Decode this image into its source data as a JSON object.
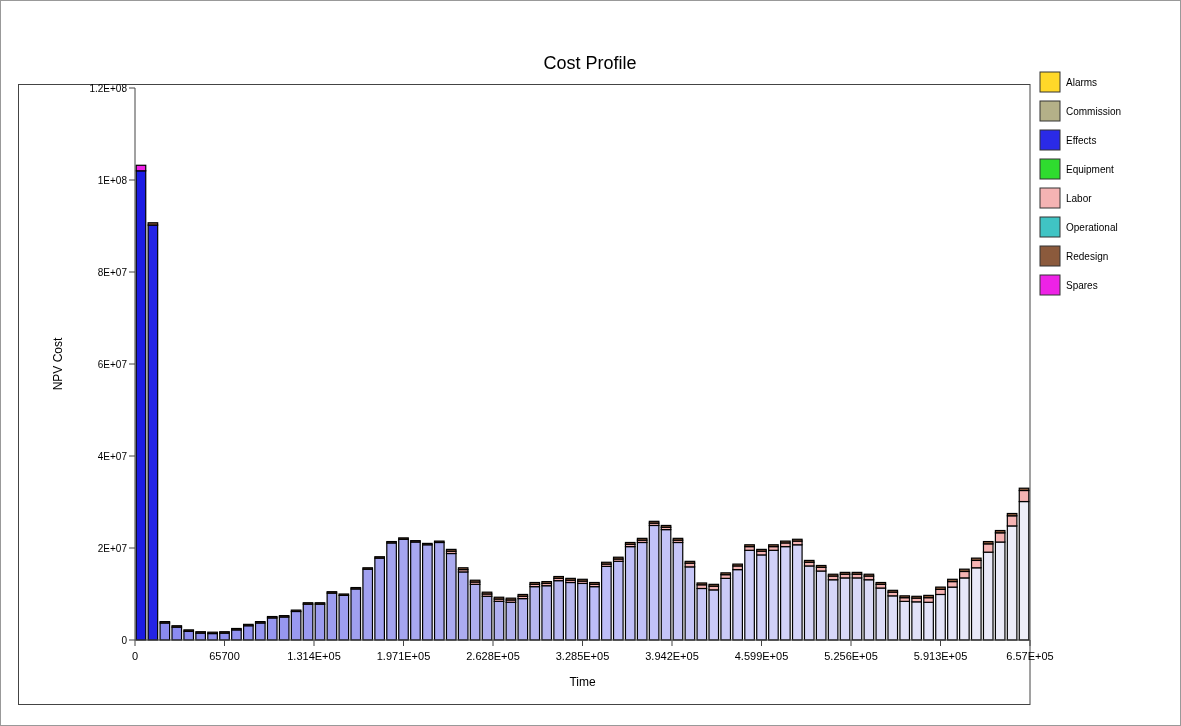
{
  "chart_data": {
    "type": "bar",
    "stacked": true,
    "title": "Cost Profile",
    "xlabel": "Time",
    "ylabel": "NPV Cost",
    "legend": "right",
    "grid": false,
    "xlim": [
      0,
      657000
    ],
    "ylim": [
      0,
      120000000
    ],
    "xticks": [
      0,
      65700,
      {
        "value": 131400,
        "label": "1.314E+05"
      },
      {
        "value": 197100,
        "label": "1.971E+05"
      },
      {
        "value": 262800,
        "label": "2.628E+05"
      },
      {
        "value": 328500,
        "label": "3.285E+05"
      },
      {
        "value": 394200,
        "label": "3.942E+05"
      },
      {
        "value": 459900,
        "label": "4.599E+05"
      },
      {
        "value": 525600,
        "label": "5.256E+05"
      },
      {
        "value": 591300,
        "label": "5.913E+05"
      },
      {
        "value": 657000,
        "label": "6.57E+05"
      }
    ],
    "yticks": [
      0,
      {
        "value": 20000000,
        "label": "2E+07"
      },
      {
        "value": 40000000,
        "label": "4E+07"
      },
      {
        "value": 60000000,
        "label": "6E+07"
      },
      {
        "value": 80000000,
        "label": "8E+07"
      },
      {
        "value": 100000000,
        "label": "1E+08"
      },
      {
        "value": 120000000,
        "label": "1.2E+08"
      }
    ],
    "x": [
      4380,
      13140,
      21900,
      30660,
      39420,
      48180,
      56940,
      65700,
      74460,
      83220,
      91980,
      100740,
      109500,
      118260,
      127020,
      135780,
      144540,
      153300,
      162060,
      170820,
      179580,
      188340,
      197100,
      205860,
      214620,
      223380,
      232140,
      240900,
      249660,
      258420,
      267180,
      275940,
      284700,
      293460,
      302220,
      310980,
      319740,
      328500,
      337260,
      346020,
      354780,
      363540,
      372300,
      381060,
      389820,
      398580,
      407340,
      416100,
      424860,
      433620,
      442380,
      451140,
      459900,
      468660,
      477420,
      486180,
      494940,
      503700,
      512460,
      521220,
      529980,
      538740,
      547500,
      556260,
      565020,
      573780,
      582540,
      591300,
      600060,
      608820,
      617580,
      626340,
      635100,
      643860,
      652620
    ],
    "series": [
      {
        "name": "Alarms",
        "color": "#ffd829",
        "values": [
          0,
          0,
          0,
          0,
          0,
          0,
          0,
          0,
          0,
          0,
          0,
          0,
          0,
          0,
          0,
          0,
          0,
          0,
          0,
          0,
          0,
          0,
          0,
          0,
          0,
          0,
          0,
          0,
          0,
          0,
          0,
          0,
          0,
          0,
          0,
          0,
          0,
          0,
          0,
          0,
          0,
          0,
          0,
          0,
          0,
          0,
          0,
          0,
          0,
          0,
          0,
          0,
          0,
          0,
          0,
          0,
          0,
          0,
          0,
          0,
          0,
          0,
          0,
          0,
          0,
          0,
          0,
          0,
          0,
          0,
          0,
          0,
          0,
          0,
          0
        ]
      },
      {
        "name": "Commission",
        "color": "#b4b088",
        "values": [
          0,
          0,
          0,
          0,
          0,
          0,
          0,
          0,
          0,
          0,
          0,
          0,
          0,
          0,
          0,
          0,
          0,
          0,
          0,
          0,
          0,
          0,
          0,
          0,
          0,
          0,
          0,
          0,
          0,
          0,
          0,
          0,
          0,
          0,
          0,
          0,
          0,
          0,
          0,
          0,
          0,
          0,
          0,
          0,
          0,
          0,
          0,
          0,
          0,
          0,
          0,
          0,
          0,
          0,
          0,
          0,
          0,
          0,
          0,
          0,
          0,
          0,
          0,
          0,
          0,
          0,
          0,
          0,
          0,
          0,
          0,
          0,
          0,
          0,
          0
        ]
      },
      {
        "name": "Effects",
        "color": "#2a2ae6",
        "values": [
          102000000,
          90200000,
          3700000,
          2800000,
          1900000,
          1500000,
          1400000,
          1500000,
          2200000,
          3100000,
          3700000,
          4800000,
          5000000,
          6200000,
          7800000,
          7800000,
          10200000,
          9700000,
          11100000,
          15400000,
          17800000,
          21100000,
          21900000,
          21300000,
          20700000,
          21200000,
          18800000,
          14800000,
          12100000,
          9500000,
          8400000,
          8200000,
          9000000,
          11600000,
          11800000,
          12900000,
          12500000,
          12300000,
          11600000,
          16000000,
          17100000,
          20300000,
          21200000,
          24900000,
          24000000,
          21200000,
          15900000,
          11200000,
          10900000,
          13400000,
          15300000,
          19500000,
          18500000,
          19500000,
          20300000,
          20700000,
          16100000,
          15000000,
          13100000,
          13500000,
          13500000,
          13100000,
          11300000,
          9600000,
          8400000,
          8300000,
          8200000,
          9900000,
          11500000,
          13500000,
          15700000,
          19100000,
          21300000,
          24800000,
          30100000
        ],
        "colors": [
          "#1c1ce4",
          "#2424e6",
          "#8a8af0",
          "#8b8bf0",
          "#8c8cf0",
          "#8e8ef0",
          "#8f8ff0",
          "#9090f0",
          "#9292f0",
          "#9393f0",
          "#9595f0",
          "#9696f0",
          "#9797f0",
          "#9999f0",
          "#9a9af0",
          "#9c9cf0",
          "#9d9df0",
          "#9e9ef0",
          "#a0a0f0",
          "#a1a1f0",
          "#a3a3f0",
          "#a4a4f0",
          "#a5a5f0",
          "#a7a7f0",
          "#a8a8f0",
          "#a9a9f0",
          "#ababf0",
          "#acacf0",
          "#aeaef0",
          "#afaff0",
          "#b0b0f0",
          "#b2b2f0",
          "#b3b3f0",
          "#b5b5f0",
          "#b6b6f0",
          "#b7b7f0",
          "#b9b9f0",
          "#babaf0",
          "#bcbcf8",
          "#bdbdf8",
          "#bebef8",
          "#c0c0f8",
          "#c1c1f8",
          "#c2c2f8",
          "#c4c4f8",
          "#c5c5f8",
          "#c7c7f8",
          "#c8c8f8",
          "#c9c9f8",
          "#cbcbf8",
          "#ccccf8",
          "#cecef8",
          "#cfcff8",
          "#d0d0f8",
          "#d2d2f8",
          "#d3d3f8",
          "#d5d5f8",
          "#d6d6f8",
          "#d7d7f8",
          "#d9d9f8",
          "#dadaf8",
          "#dbdbf8",
          "#ddddf8",
          "#dedef8",
          "#e0e0f8",
          "#e1e1f8",
          "#e2e2f8",
          "#e4e4f8",
          "#e5e5f8",
          "#e7e7f8",
          "#e8e8f8",
          "#e9e9f8",
          "#ebebf8",
          "#ececf8",
          "#eeeef8"
        ]
      },
      {
        "name": "Equipment",
        "color": "#2fdc2f",
        "values": [
          0,
          0,
          0,
          0,
          0,
          0,
          0,
          0,
          0,
          0,
          0,
          0,
          0,
          0,
          0,
          0,
          0,
          0,
          0,
          0,
          0,
          0,
          0,
          0,
          0,
          0,
          0,
          0,
          0,
          0,
          0,
          0,
          0,
          0,
          0,
          0,
          0,
          0,
          0,
          0,
          0,
          0,
          0,
          0,
          0,
          0,
          0,
          0,
          0,
          0,
          0,
          0,
          0,
          0,
          0,
          0,
          0,
          0,
          0,
          0,
          0,
          0,
          0,
          0,
          0,
          0,
          0,
          0,
          0,
          0,
          0,
          0,
          0,
          0,
          0
        ]
      },
      {
        "name": "Labor",
        "color": "#f5b3b3",
        "values": [
          0,
          0,
          0,
          0,
          0,
          0,
          0,
          0,
          0,
          0,
          0,
          0,
          0,
          0,
          0,
          0,
          0,
          0,
          0,
          0,
          0,
          0,
          0,
          0,
          0,
          0,
          500000,
          500000,
          500000,
          500000,
          500000,
          500000,
          500000,
          500000,
          500000,
          500000,
          500000,
          500000,
          500000,
          500000,
          500000,
          500000,
          500000,
          500000,
          500000,
          500000,
          800000,
          800000,
          800000,
          800000,
          800000,
          800000,
          800000,
          800000,
          800000,
          800000,
          800000,
          800000,
          800000,
          800000,
          800000,
          800000,
          800000,
          800000,
          800000,
          800000,
          1000000,
          1100000,
          1200000,
          1400000,
          1600000,
          1800000,
          2000000,
          2200000,
          2400000
        ]
      },
      {
        "name": "Operational",
        "color": "#40c4c4",
        "values": [
          0,
          0,
          0,
          0,
          0,
          0,
          0,
          0,
          0,
          0,
          0,
          0,
          0,
          0,
          0,
          0,
          0,
          0,
          0,
          0,
          0,
          0,
          0,
          0,
          0,
          0,
          0,
          0,
          0,
          0,
          0,
          0,
          0,
          0,
          0,
          0,
          0,
          0,
          0,
          0,
          0,
          0,
          0,
          0,
          0,
          0,
          0,
          0,
          0,
          0,
          0,
          0,
          0,
          0,
          0,
          0,
          0,
          0,
          0,
          0,
          0,
          0,
          0,
          0,
          0,
          0,
          0,
          0,
          0,
          0,
          0,
          0,
          0,
          0,
          0
        ]
      },
      {
        "name": "Redesign",
        "color": "#8b5a3c",
        "values": [
          0,
          500000,
          300000,
          300000,
          300000,
          300000,
          300000,
          300000,
          300000,
          300000,
          300000,
          300000,
          300000,
          300000,
          300000,
          300000,
          300000,
          300000,
          300000,
          300000,
          300000,
          300000,
          300000,
          300000,
          300000,
          300000,
          400000,
          400000,
          400000,
          400000,
          400000,
          400000,
          400000,
          400000,
          400000,
          400000,
          400000,
          400000,
          400000,
          400000,
          400000,
          400000,
          400000,
          400000,
          400000,
          400000,
          400000,
          400000,
          400000,
          400000,
          400000,
          400000,
          400000,
          400000,
          400000,
          400000,
          400000,
          400000,
          400000,
          400000,
          400000,
          400000,
          400000,
          400000,
          400000,
          400000,
          500000,
          500000,
          500000,
          500000,
          500000,
          500000,
          500000,
          500000,
          500000
        ]
      },
      {
        "name": "Spares",
        "color": "#ee22e6",
        "values": [
          1200000,
          0,
          0,
          0,
          0,
          0,
          0,
          0,
          0,
          0,
          0,
          0,
          0,
          0,
          0,
          0,
          0,
          0,
          0,
          0,
          0,
          0,
          0,
          0,
          0,
          0,
          0,
          0,
          0,
          0,
          0,
          0,
          0,
          0,
          0,
          0,
          0,
          0,
          0,
          0,
          0,
          0,
          0,
          0,
          0,
          0,
          0,
          0,
          0,
          0,
          0,
          0,
          0,
          0,
          0,
          0,
          0,
          0,
          0,
          0,
          0,
          0,
          0,
          0,
          0,
          0,
          0,
          0,
          0,
          0,
          0,
          0,
          0,
          0,
          0
        ]
      }
    ]
  }
}
